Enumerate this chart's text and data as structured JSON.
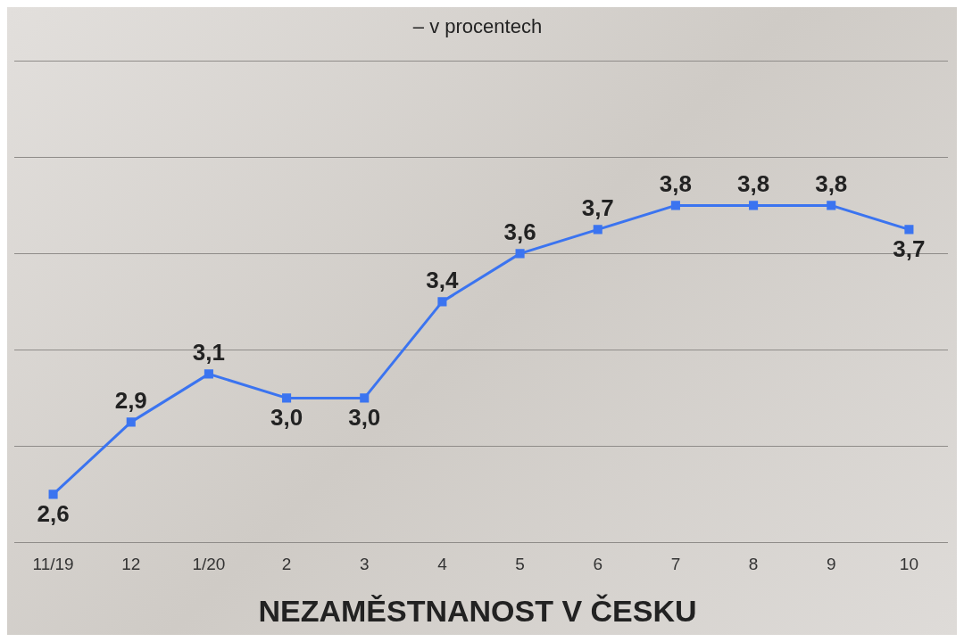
{
  "chart_data": {
    "type": "line",
    "title": "NEZAMĚSTNANOST V ČESKU",
    "subtitle": "– v procentech",
    "categories": [
      "11/19",
      "12",
      "1/20",
      "2",
      "3",
      "4",
      "5",
      "6",
      "7",
      "8",
      "9",
      "10"
    ],
    "values": [
      2.6,
      2.9,
      3.1,
      3.0,
      3.0,
      3.4,
      3.6,
      3.7,
      3.8,
      3.8,
      3.8,
      3.7
    ],
    "value_labels": [
      "2,6",
      "2,9",
      "3,1",
      "3,0",
      "3,0",
      "3,4",
      "3,6",
      "3,7",
      "3,8",
      "3,8",
      "3,8",
      "3,7"
    ],
    "color": "#3b74f0",
    "ylim": [
      2.4,
      4.4
    ],
    "yticks": [
      {
        "value": 2.4,
        "label": null
      },
      {
        "value": 2.8,
        "label": null
      },
      {
        "value": 3.2,
        "label": null
      },
      {
        "value": 3.6,
        "label": null
      },
      {
        "value": 4.0,
        "label": null
      },
      {
        "value": 4.4,
        "label": null
      }
    ],
    "grid": "y",
    "marker": "square",
    "line_style": "solid",
    "legend": false,
    "tick_labels": "x"
  }
}
